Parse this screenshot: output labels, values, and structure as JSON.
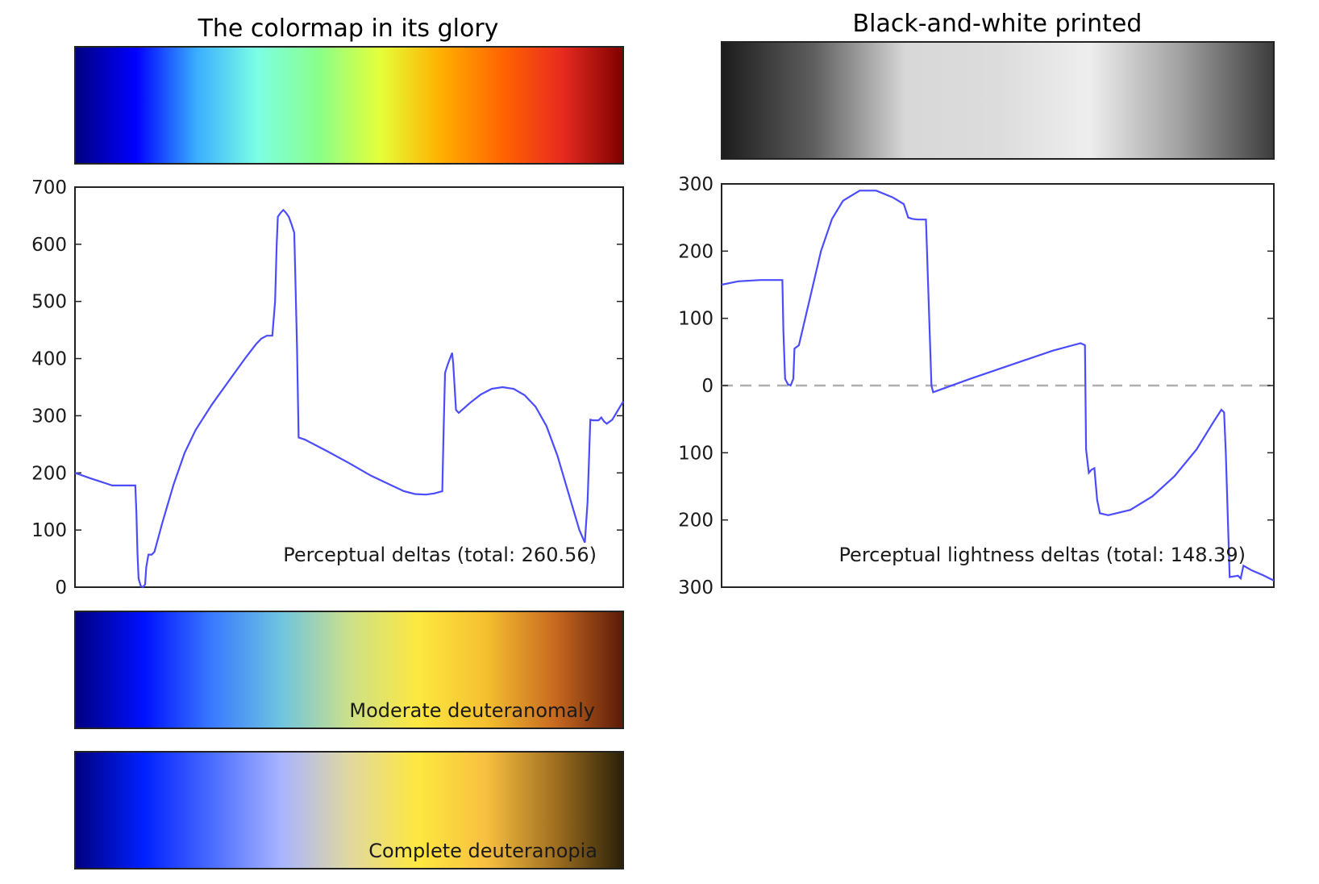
{
  "figure": {
    "left_title": "The colormap in its glory",
    "right_title": "Black-and-white printed"
  },
  "chart_data": [
    {
      "type": "line",
      "panel": "left",
      "annotation": "Perceptual deltas (total: 260.56)",
      "ylim": [
        0,
        700
      ],
      "xlim": [
        0,
        1
      ],
      "y_ticks": [
        "0",
        "100",
        "200",
        "300",
        "400",
        "500",
        "600",
        "700"
      ],
      "grid": false,
      "series_color": "#4b4bff",
      "points": [
        [
          0.0,
          200
        ],
        [
          0.03,
          190
        ],
        [
          0.068,
          178
        ],
        [
          0.11,
          178
        ],
        [
          0.112,
          130
        ],
        [
          0.114,
          60
        ],
        [
          0.116,
          15
        ],
        [
          0.12,
          2
        ],
        [
          0.124,
          0
        ],
        [
          0.128,
          5
        ],
        [
          0.13,
          35
        ],
        [
          0.134,
          57
        ],
        [
          0.14,
          57
        ],
        [
          0.145,
          62
        ],
        [
          0.16,
          115
        ],
        [
          0.18,
          180
        ],
        [
          0.2,
          235
        ],
        [
          0.22,
          275
        ],
        [
          0.25,
          320
        ],
        [
          0.28,
          360
        ],
        [
          0.31,
          400
        ],
        [
          0.33,
          425
        ],
        [
          0.34,
          435
        ],
        [
          0.35,
          440
        ],
        [
          0.36,
          440
        ],
        [
          0.365,
          500
        ],
        [
          0.368,
          600
        ],
        [
          0.37,
          648
        ],
        [
          0.375,
          655
        ],
        [
          0.38,
          660
        ],
        [
          0.385,
          655
        ],
        [
          0.39,
          648
        ],
        [
          0.395,
          635
        ],
        [
          0.4,
          620
        ],
        [
          0.405,
          420
        ],
        [
          0.408,
          262
        ],
        [
          0.42,
          258
        ],
        [
          0.46,
          238
        ],
        [
          0.5,
          217
        ],
        [
          0.54,
          195
        ],
        [
          0.58,
          177
        ],
        [
          0.6,
          168
        ],
        [
          0.62,
          163
        ],
        [
          0.64,
          162
        ],
        [
          0.655,
          164
        ],
        [
          0.67,
          168
        ],
        [
          0.672,
          260
        ],
        [
          0.675,
          375
        ],
        [
          0.68,
          390
        ],
        [
          0.688,
          410
        ],
        [
          0.69,
          390
        ],
        [
          0.695,
          310
        ],
        [
          0.7,
          305
        ],
        [
          0.72,
          322
        ],
        [
          0.74,
          337
        ],
        [
          0.76,
          347
        ],
        [
          0.78,
          350
        ],
        [
          0.8,
          347
        ],
        [
          0.82,
          336
        ],
        [
          0.84,
          316
        ],
        [
          0.86,
          282
        ],
        [
          0.88,
          230
        ],
        [
          0.9,
          165
        ],
        [
          0.92,
          100
        ],
        [
          0.93,
          78
        ],
        [
          0.935,
          150
        ],
        [
          0.94,
          293
        ],
        [
          0.945,
          292
        ],
        [
          0.955,
          292
        ],
        [
          0.96,
          297
        ],
        [
          0.965,
          290
        ],
        [
          0.97,
          286
        ],
        [
          0.98,
          293
        ],
        [
          1.0,
          325
        ]
      ]
    },
    {
      "type": "line",
      "panel": "right",
      "annotation": "Perceptual lightness deltas (total: 148.39)",
      "ylim": [
        -300,
        300
      ],
      "xlim": [
        0,
        1
      ],
      "y_ticks": [
        "300",
        "200",
        "100",
        "0",
        "100",
        "200",
        "300"
      ],
      "reference_line": {
        "y": 0,
        "style": "dashed",
        "color": "#b0b0b0"
      },
      "grid": false,
      "series_color": "#4b4bff",
      "points": [
        [
          0.0,
          150
        ],
        [
          0.03,
          155
        ],
        [
          0.07,
          157
        ],
        [
          0.11,
          157
        ],
        [
          0.112,
          80
        ],
        [
          0.115,
          10
        ],
        [
          0.12,
          2
        ],
        [
          0.125,
          0
        ],
        [
          0.13,
          10
        ],
        [
          0.132,
          55
        ],
        [
          0.14,
          60
        ],
        [
          0.16,
          130
        ],
        [
          0.18,
          200
        ],
        [
          0.2,
          248
        ],
        [
          0.22,
          275
        ],
        [
          0.25,
          290
        ],
        [
          0.28,
          290
        ],
        [
          0.31,
          280
        ],
        [
          0.33,
          270
        ],
        [
          0.338,
          250
        ],
        [
          0.345,
          248
        ],
        [
          0.355,
          247
        ],
        [
          0.37,
          247
        ],
        [
          0.38,
          0
        ],
        [
          0.383,
          -10
        ],
        [
          0.45,
          10
        ],
        [
          0.55,
          38
        ],
        [
          0.6,
          52
        ],
        [
          0.65,
          63
        ],
        [
          0.658,
          60
        ],
        [
          0.66,
          -95
        ],
        [
          0.665,
          -130
        ],
        [
          0.67,
          -125
        ],
        [
          0.675,
          -123
        ],
        [
          0.68,
          -170
        ],
        [
          0.685,
          -190
        ],
        [
          0.7,
          -193
        ],
        [
          0.74,
          -185
        ],
        [
          0.78,
          -165
        ],
        [
          0.82,
          -135
        ],
        [
          0.86,
          -95
        ],
        [
          0.89,
          -55
        ],
        [
          0.905,
          -36
        ],
        [
          0.91,
          -40
        ],
        [
          0.913,
          -100
        ],
        [
          0.92,
          -285
        ],
        [
          0.935,
          -283
        ],
        [
          0.94,
          -287
        ],
        [
          0.945,
          -268
        ],
        [
          0.96,
          -275
        ],
        [
          0.98,
          -282
        ],
        [
          1.0,
          -290
        ]
      ]
    }
  ],
  "colorbars": {
    "jet": {
      "label": "",
      "stops": [
        "#00007f",
        "#0000ff",
        "#3aaeff",
        "#7cffe4",
        "#8aff8a",
        "#e4ff3a",
        "#ffb000",
        "#ff6600",
        "#e82a20",
        "#7f0000"
      ]
    },
    "bw": {
      "label": "",
      "stops": [
        "#1c1c1c",
        "#5e5e5e",
        "#d8d8d8",
        "#dcdcdc",
        "#eeeeee",
        "#a0a0a0",
        "#3c3c3c"
      ]
    },
    "deuteranomaly": {
      "label": "Moderate deuteranomaly",
      "stops": [
        "#00007f",
        "#0010ff",
        "#3a7aff",
        "#6ec4e0",
        "#cce08a",
        "#fde840",
        "#f4c030",
        "#c86a20",
        "#5a1a08"
      ]
    },
    "deuteranopia": {
      "label": "Complete deuteranopia",
      "stops": [
        "#00007f",
        "#0020ff",
        "#4a6cff",
        "#a8b4ff",
        "#e0d8a0",
        "#fde840",
        "#f8c040",
        "#a07020",
        "#2a2008"
      ]
    }
  }
}
